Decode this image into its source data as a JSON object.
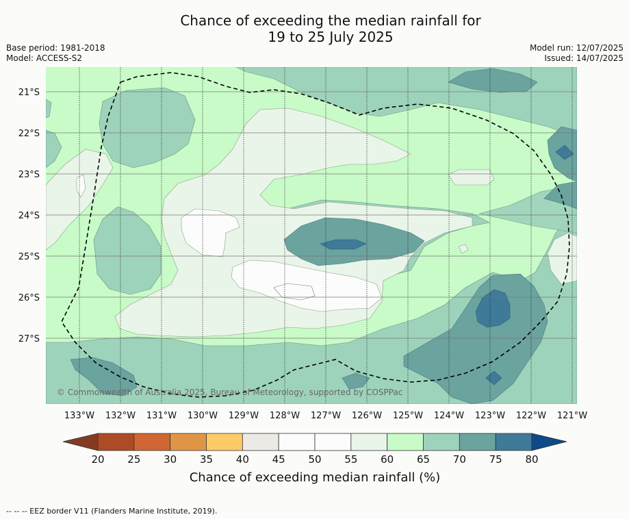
{
  "title": {
    "line1": "Chance of exceeding the median rainfall for",
    "line2": "19 to 25 July 2025"
  },
  "meta_left": {
    "base_period": "Base period: 1981-2018",
    "model": "Model: ACCESS-S2"
  },
  "meta_right": {
    "model_run": "Model run: 12/07/2025",
    "issued": "Issued: 14/07/2025"
  },
  "map": {
    "latitude_labels": [
      "21°S",
      "22°S",
      "23°S",
      "24°S",
      "25°S",
      "26°S",
      "27°S"
    ],
    "longitude_labels": [
      "133°W",
      "132°W",
      "131°W",
      "130°W",
      "129°W",
      "128°W",
      "127°W",
      "126°W",
      "125°W",
      "124°W",
      "123°W",
      "122°W",
      "121°W"
    ],
    "copyright": "© Commonwealth of Australia 2025, Bureau of Meteorology, supported by COSPPac",
    "boundary": "EEZ border (dashed)"
  },
  "colorbar": {
    "ticks": [
      "20",
      "25",
      "30",
      "35",
      "40",
      "45",
      "50",
      "55",
      "60",
      "65",
      "70",
      "75",
      "80"
    ],
    "colors": [
      "#ac4b26",
      "#cf6633",
      "#e09546",
      "#fdcb67",
      "#eceae5",
      "#fbfcfb",
      "#fbfcfb",
      "#eaf5e9",
      "#c8fbc7",
      "#9ed3bb",
      "#6ba39f",
      "#3f7a98"
    ],
    "under_color": "#843b24",
    "over_color": "#0e4a87",
    "label": "Chance of exceeding median rainfall (%)"
  },
  "footnote": "-- -- -- EEZ border V11 (Flanders Marine Institute, 2019)."
}
